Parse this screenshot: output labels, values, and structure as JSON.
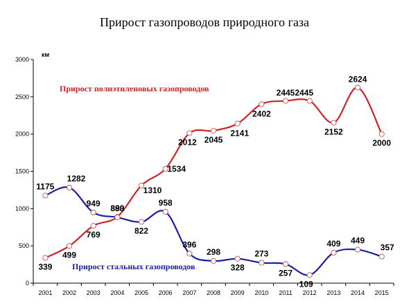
{
  "chart_data": {
    "type": "line",
    "title": "Прирост газопроводов природного газа",
    "unit_label": "км",
    "x": [
      "2001",
      "2002",
      "2003",
      "2004",
      "2005",
      "2006",
      "2007",
      "2008",
      "2009",
      "2010",
      "2011",
      "2012",
      "2013",
      "2014",
      "2015"
    ],
    "ylim": [
      0,
      3000
    ],
    "y_ticks": [
      "0",
      "500",
      "1000",
      "1500",
      "2000",
      "2500",
      "3000"
    ],
    "grid": false,
    "series": [
      {
        "name": "Прирост полиэтиленовых газопроводов",
        "color": "#d32020",
        "values": [
          339,
          499,
          769,
          890,
          1310,
          1534,
          2012,
          2045,
          2141,
          2402,
          2445,
          2445,
          2152,
          2624,
          2000
        ],
        "labels": [
          "339",
          "499",
          "769",
          "890",
          "1310",
          "1534",
          "2012",
          "2045",
          "2141",
          "2402",
          "2445",
          "2445",
          "2152",
          "2624",
          "2000"
        ]
      },
      {
        "name": "Прирост стальных газопроводов",
        "color": "#1a1aa8",
        "values": [
          1175,
          1282,
          949,
          883,
          822,
          958,
          396,
          298,
          328,
          273,
          257,
          109,
          409,
          449,
          357
        ],
        "labels": [
          "1175",
          "1282",
          "949",
          "883",
          "822",
          "958",
          "396",
          "298",
          "328",
          "273",
          "257",
          "109",
          "409",
          "449",
          "357"
        ]
      }
    ]
  }
}
